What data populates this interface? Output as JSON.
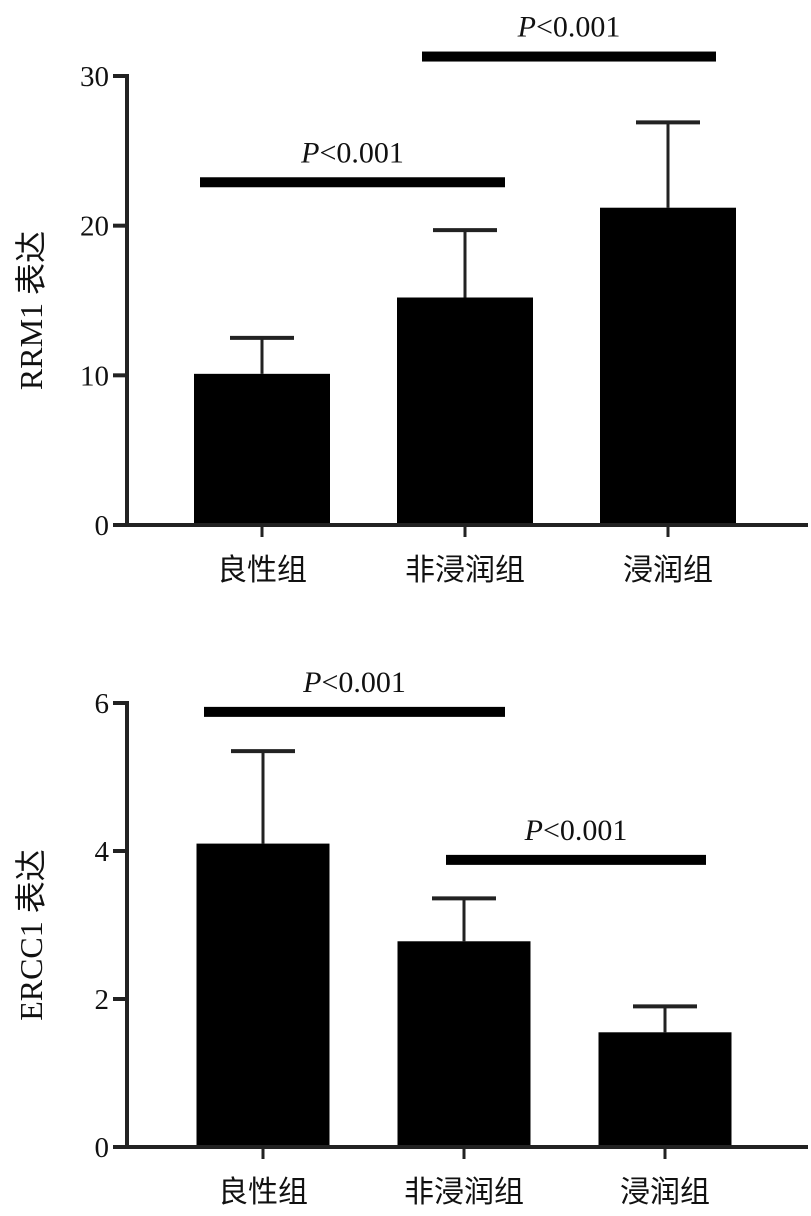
{
  "chart_data": [
    {
      "type": "bar",
      "title": "",
      "ylabel": "RRM1 表达",
      "xlabel": "",
      "categories": [
        "良性组",
        "非浸润组",
        "浸润组"
      ],
      "values": [
        10.1,
        15.2,
        21.2
      ],
      "error_upper": [
        12.5,
        19.7,
        26.9
      ],
      "ylim": [
        0,
        30
      ],
      "yticks": [
        0,
        10,
        20,
        30
      ],
      "grid": false,
      "bar_color": "#000000",
      "annotations": [
        {
          "text_italic": "P",
          "text": "<0.001",
          "from": 0,
          "to": 1,
          "y": 22.9
        },
        {
          "text_italic": "P",
          "text": "<0.001",
          "from": 1,
          "to": 2,
          "y": 31.3
        }
      ]
    },
    {
      "type": "bar",
      "title": "",
      "ylabel": "ERCC1 表达",
      "xlabel": "",
      "categories": [
        "良性组",
        "非浸润组",
        "浸润组"
      ],
      "values": [
        4.1,
        2.78,
        1.55
      ],
      "error_upper": [
        5.35,
        3.36,
        1.9
      ],
      "ylim": [
        0,
        6
      ],
      "yticks": [
        0,
        2,
        4,
        6
      ],
      "grid": false,
      "bar_color": "#000000",
      "annotations": [
        {
          "text_italic": "P",
          "text": "<0.001",
          "from": 0,
          "to": 1,
          "y": 5.88
        },
        {
          "text_italic": "P",
          "text": "<0.001",
          "from": 1,
          "to": 2,
          "y": 3.88
        }
      ]
    }
  ]
}
